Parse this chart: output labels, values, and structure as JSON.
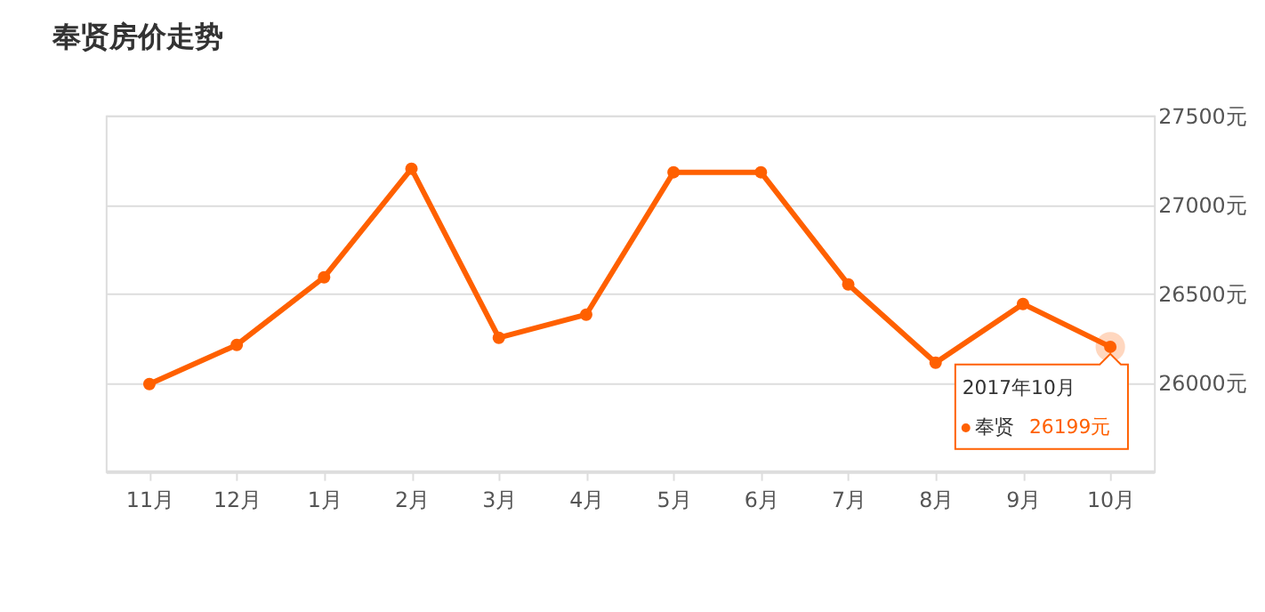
{
  "chart_data": {
    "type": "line",
    "title": "奉贤房价走势",
    "categories": [
      "11月",
      "12月",
      "1月",
      "2月",
      "3月",
      "4月",
      "5月",
      "6月",
      "7月",
      "8月",
      "9月",
      "10月"
    ],
    "series": [
      {
        "name": "奉贤",
        "color": "#ff6000",
        "values": [
          25990,
          26210,
          26590,
          27200,
          26250,
          26380,
          27180,
          27180,
          26550,
          26110,
          26440,
          26199
        ],
        "value_labels": [
          null,
          null,
          null,
          null,
          null,
          null,
          null,
          null,
          null,
          null,
          null,
          "26199元"
        ]
      }
    ],
    "annotations": [
      "2017年10月"
    ],
    "ylim": [
      25500,
      27500
    ],
    "yticks": [
      {
        "value": 26000,
        "label": "26000元"
      },
      {
        "value": 26500,
        "label": "26500元"
      },
      {
        "value": 27000,
        "label": "27000元"
      },
      {
        "value": 27500,
        "label": "27500元"
      }
    ],
    "grid": "y",
    "marker": "circle",
    "line_style": "solid"
  }
}
